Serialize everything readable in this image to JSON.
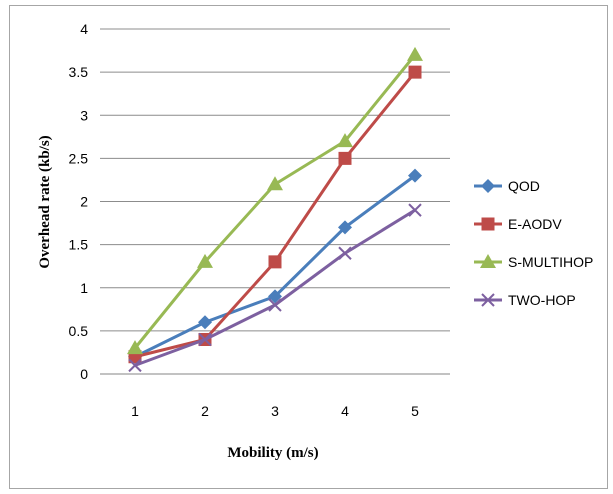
{
  "chart_data": {
    "type": "line",
    "title": "",
    "xlabel": "Mobility (m/s)",
    "ylabel": "Overhead rate (kb/s)",
    "categories": [
      "1",
      "2",
      "3",
      "4",
      "5"
    ],
    "yticks": [
      "0",
      "0.5",
      "1",
      "1.5",
      "2",
      "2.5",
      "3",
      "3.5",
      "4"
    ],
    "ylim": [
      0,
      4
    ],
    "grid": "horizontal",
    "legend_position": "right",
    "series": [
      {
        "name": "QOD",
        "values": [
          0.2,
          0.6,
          0.9,
          1.7,
          2.3
        ],
        "color": "#4A7EBB",
        "marker": "diamond"
      },
      {
        "name": "E-AODV",
        "values": [
          0.2,
          0.4,
          1.3,
          2.5,
          3.5
        ],
        "color": "#BE4B48",
        "marker": "square"
      },
      {
        "name": "S-MULTIHOP",
        "values": [
          0.3,
          1.3,
          2.2,
          2.7,
          3.7
        ],
        "color": "#98B954",
        "marker": "triangle"
      },
      {
        "name": "TWO-HOP",
        "values": [
          0.1,
          0.4,
          0.8,
          1.4,
          1.9
        ],
        "color": "#7D60A0",
        "marker": "x"
      }
    ]
  }
}
